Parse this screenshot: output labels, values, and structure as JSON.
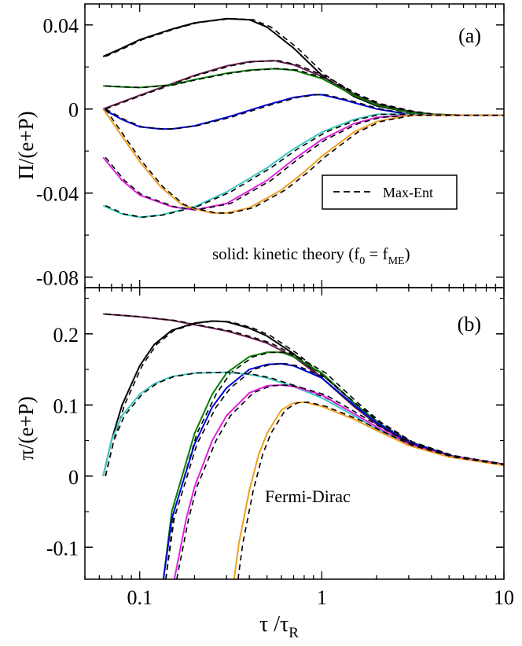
{
  "chart_data": [
    {
      "type": "line",
      "panel_label": "(a)",
      "ylabel_main": "Π",
      "ylabel_rest": "/(e+P)",
      "xscale": "log",
      "xlim": [
        0.05,
        10
      ],
      "ylim": [
        -0.085,
        0.05
      ],
      "yticks": [
        0.04,
        0,
        -0.04,
        -0.08
      ],
      "ytick_labels": [
        "0.04",
        "0",
        "-0.04",
        "-0.08"
      ],
      "legend": {
        "label": "Max-Ent",
        "style": "dashed",
        "placement": "right"
      },
      "annotation": {
        "prefix": "solid: kinetic theory (f",
        "sub1": "0",
        "mid": " = f",
        "sub2": "ME",
        "suffix": ")"
      },
      "series": [
        {
          "name": "black",
          "color": "#000000",
          "points": [
            [
              0.063,
              0.025
            ],
            [
              0.08,
              0.029
            ],
            [
              0.1,
              0.033
            ],
            [
              0.15,
              0.038
            ],
            [
              0.2,
              0.041
            ],
            [
              0.3,
              0.043
            ],
            [
              0.4,
              0.0425
            ],
            [
              0.5,
              0.039
            ],
            [
              0.7,
              0.029
            ],
            [
              1,
              0.016
            ],
            [
              1.5,
              0.006
            ],
            [
              2,
              0.0015
            ],
            [
              3,
              -0.0015
            ],
            [
              4,
              -0.0025
            ],
            [
              6,
              -0.003
            ],
            [
              10,
              -0.003
            ]
          ]
        },
        {
          "name": "purple",
          "color": "#6a1b4d",
          "points": [
            [
              0.063,
              0
            ],
            [
              0.1,
              0.0065
            ],
            [
              0.15,
              0.012
            ],
            [
              0.2,
              0.016
            ],
            [
              0.3,
              0.0205
            ],
            [
              0.4,
              0.0225
            ],
            [
              0.55,
              0.023
            ],
            [
              0.7,
              0.021
            ],
            [
              1,
              0.0155
            ],
            [
              1.5,
              0.007
            ],
            [
              2,
              0.0025
            ],
            [
              3,
              -0.001
            ],
            [
              4,
              -0.0025
            ],
            [
              6,
              -0.003
            ],
            [
              10,
              -0.003
            ]
          ]
        },
        {
          "name": "green",
          "color": "#008000",
          "points": [
            [
              0.063,
              0.011
            ],
            [
              0.08,
              0.0105
            ],
            [
              0.1,
              0.0102
            ],
            [
              0.15,
              0.0115
            ],
            [
              0.2,
              0.014
            ],
            [
              0.3,
              0.017
            ],
            [
              0.4,
              0.0185
            ],
            [
              0.55,
              0.0192
            ],
            [
              0.7,
              0.0185
            ],
            [
              1,
              0.0145
            ],
            [
              1.5,
              0.0065
            ],
            [
              2,
              0.002
            ],
            [
              3,
              -0.0015
            ],
            [
              4,
              -0.0025
            ],
            [
              6,
              -0.003
            ],
            [
              10,
              -0.003
            ]
          ]
        },
        {
          "name": "blue",
          "color": "#0000dd",
          "points": [
            [
              0.063,
              0
            ],
            [
              0.08,
              -0.005
            ],
            [
              0.1,
              -0.0085
            ],
            [
              0.13,
              -0.0095
            ],
            [
              0.15,
              -0.0095
            ],
            [
              0.2,
              -0.008
            ],
            [
              0.3,
              -0.004
            ],
            [
              0.5,
              0.002
            ],
            [
              0.7,
              0.0055
            ],
            [
              0.9,
              0.0068
            ],
            [
              1,
              0.0068
            ],
            [
              1.3,
              0.0045
            ],
            [
              2,
              0
            ],
            [
              3,
              -0.0025
            ],
            [
              5,
              -0.003
            ],
            [
              10,
              -0.003
            ]
          ]
        },
        {
          "name": "cyan",
          "color": "#40c8c0",
          "points": [
            [
              0.063,
              -0.046
            ],
            [
              0.08,
              -0.05
            ],
            [
              0.1,
              -0.0515
            ],
            [
              0.13,
              -0.0505
            ],
            [
              0.2,
              -0.0465
            ],
            [
              0.3,
              -0.0395
            ],
            [
              0.5,
              -0.028
            ],
            [
              0.7,
              -0.019
            ],
            [
              1,
              -0.011
            ],
            [
              1.5,
              -0.005
            ],
            [
              2,
              -0.0025
            ],
            [
              3,
              -0.0025
            ],
            [
              5,
              -0.003
            ],
            [
              10,
              -0.003
            ]
          ]
        },
        {
          "name": "magenta",
          "color": "#e020e0",
          "points": [
            [
              0.063,
              -0.023
            ],
            [
              0.08,
              -0.034
            ],
            [
              0.1,
              -0.041
            ],
            [
              0.15,
              -0.0465
            ],
            [
              0.2,
              -0.048
            ],
            [
              0.3,
              -0.045
            ],
            [
              0.5,
              -0.034
            ],
            [
              0.7,
              -0.024
            ],
            [
              1,
              -0.0145
            ],
            [
              1.5,
              -0.007
            ],
            [
              2,
              -0.004
            ],
            [
              3,
              -0.003
            ],
            [
              5,
              -0.003
            ],
            [
              10,
              -0.003
            ]
          ]
        },
        {
          "name": "orange",
          "color": "#f0a020",
          "points": [
            [
              0.063,
              0
            ],
            [
              0.08,
              -0.013
            ],
            [
              0.1,
              -0.025
            ],
            [
              0.13,
              -0.037
            ],
            [
              0.17,
              -0.0455
            ],
            [
              0.2,
              -0.0475
            ],
            [
              0.25,
              -0.0495
            ],
            [
              0.3,
              -0.0495
            ],
            [
              0.4,
              -0.047
            ],
            [
              0.6,
              -0.0385
            ],
            [
              0.8,
              -0.03
            ],
            [
              1,
              -0.0225
            ],
            [
              1.5,
              -0.011
            ],
            [
              2,
              -0.006
            ],
            [
              3,
              -0.003
            ],
            [
              5,
              -0.003
            ],
            [
              10,
              -0.003
            ]
          ]
        }
      ]
    },
    {
      "type": "line",
      "panel_label": "(b)",
      "ylabel_main": "π",
      "ylabel_rest": "/(e+P)",
      "xlabel_main": "τ /τ",
      "xlabel_sub": "R",
      "xscale": "log",
      "xlim": [
        0.05,
        10
      ],
      "ylim": [
        -0.145,
        0.265
      ],
      "yticks": [
        0.2,
        0.1,
        0,
        -0.1
      ],
      "ytick_labels": [
        "0.2",
        "0.1",
        "0",
        "-0.1"
      ],
      "xticks": [
        0.1,
        1,
        10
      ],
      "xtick_labels": [
        "0.1",
        "1",
        "10"
      ],
      "annotation": "Fermi-Dirac",
      "series": [
        {
          "name": "black",
          "color": "#000000",
          "points": [
            [
              0.063,
              0
            ],
            [
              0.07,
              0.05
            ],
            [
              0.08,
              0.1
            ],
            [
              0.1,
              0.155
            ],
            [
              0.12,
              0.185
            ],
            [
              0.15,
              0.205
            ],
            [
              0.2,
              0.215
            ],
            [
              0.25,
              0.218
            ],
            [
              0.3,
              0.217
            ],
            [
              0.4,
              0.208
            ],
            [
              0.5,
              0.197
            ],
            [
              0.7,
              0.172
            ],
            [
              1,
              0.138
            ],
            [
              1.5,
              0.098
            ],
            [
              2,
              0.073
            ],
            [
              3,
              0.047
            ],
            [
              5,
              0.028
            ],
            [
              10,
              0.016
            ]
          ]
        },
        {
          "name": "purple",
          "color": "#6a1b4d",
          "points": [
            [
              0.063,
              0.228
            ],
            [
              0.1,
              0.224
            ],
            [
              0.15,
              0.219
            ],
            [
              0.2,
              0.213
            ],
            [
              0.3,
              0.204
            ],
            [
              0.4,
              0.195
            ],
            [
              0.5,
              0.187
            ],
            [
              0.7,
              0.168
            ],
            [
              1,
              0.138
            ],
            [
              1.5,
              0.098
            ],
            [
              2,
              0.073
            ],
            [
              3,
              0.047
            ],
            [
              5,
              0.028
            ],
            [
              10,
              0.016
            ]
          ]
        },
        {
          "name": "green",
          "color": "#008000",
          "points": [
            [
              0.135,
              -0.145
            ],
            [
              0.15,
              -0.05
            ],
            [
              0.2,
              0.06
            ],
            [
              0.25,
              0.115
            ],
            [
              0.3,
              0.145
            ],
            [
              0.4,
              0.168
            ],
            [
              0.5,
              0.174
            ],
            [
              0.6,
              0.174
            ],
            [
              0.7,
              0.168
            ],
            [
              1,
              0.145
            ],
            [
              1.5,
              0.103
            ],
            [
              2,
              0.076
            ],
            [
              3,
              0.048
            ],
            [
              5,
              0.029
            ],
            [
              10,
              0.016
            ]
          ]
        },
        {
          "name": "blue",
          "color": "#0000dd",
          "points": [
            [
              0.135,
              -0.145
            ],
            [
              0.15,
              -0.06
            ],
            [
              0.2,
              0.045
            ],
            [
              0.25,
              0.097
            ],
            [
              0.3,
              0.124
            ],
            [
              0.4,
              0.15
            ],
            [
              0.5,
              0.157
            ],
            [
              0.6,
              0.158
            ],
            [
              0.7,
              0.155
            ],
            [
              1,
              0.138
            ],
            [
              1.5,
              0.1
            ],
            [
              2,
              0.075
            ],
            [
              3,
              0.048
            ],
            [
              5,
              0.029
            ],
            [
              10,
              0.016
            ]
          ]
        },
        {
          "name": "cyan",
          "color": "#40c8c0",
          "points": [
            [
              0.063,
              0
            ],
            [
              0.07,
              0.05
            ],
            [
              0.08,
              0.085
            ],
            [
              0.1,
              0.115
            ],
            [
              0.12,
              0.13
            ],
            [
              0.15,
              0.14
            ],
            [
              0.2,
              0.145
            ],
            [
              0.3,
              0.146
            ],
            [
              0.4,
              0.143
            ],
            [
              0.5,
              0.138
            ],
            [
              0.7,
              0.126
            ],
            [
              1,
              0.11
            ],
            [
              1.5,
              0.085
            ],
            [
              2,
              0.066
            ],
            [
              3,
              0.044
            ],
            [
              5,
              0.027
            ],
            [
              10,
              0.016
            ]
          ]
        },
        {
          "name": "magenta",
          "color": "#e020e0",
          "points": [
            [
              0.155,
              -0.145
            ],
            [
              0.18,
              -0.06
            ],
            [
              0.2,
              -0.015
            ],
            [
              0.25,
              0.05
            ],
            [
              0.3,
              0.085
            ],
            [
              0.4,
              0.117
            ],
            [
              0.5,
              0.127
            ],
            [
              0.6,
              0.128
            ],
            [
              0.7,
              0.126
            ],
            [
              1,
              0.114
            ],
            [
              1.5,
              0.088
            ],
            [
              2,
              0.069
            ],
            [
              3,
              0.045
            ],
            [
              5,
              0.028
            ],
            [
              10,
              0.016
            ]
          ]
        },
        {
          "name": "orange",
          "color": "#f0a020",
          "points": [
            [
              0.33,
              -0.145
            ],
            [
              0.35,
              -0.095
            ],
            [
              0.4,
              -0.02
            ],
            [
              0.45,
              0.03
            ],
            [
              0.5,
              0.06
            ],
            [
              0.6,
              0.093
            ],
            [
              0.7,
              0.103
            ],
            [
              0.8,
              0.104
            ],
            [
              1,
              0.098
            ],
            [
              1.5,
              0.08
            ],
            [
              2,
              0.064
            ],
            [
              3,
              0.043
            ],
            [
              5,
              0.027
            ],
            [
              10,
              0.015
            ]
          ]
        }
      ]
    }
  ]
}
